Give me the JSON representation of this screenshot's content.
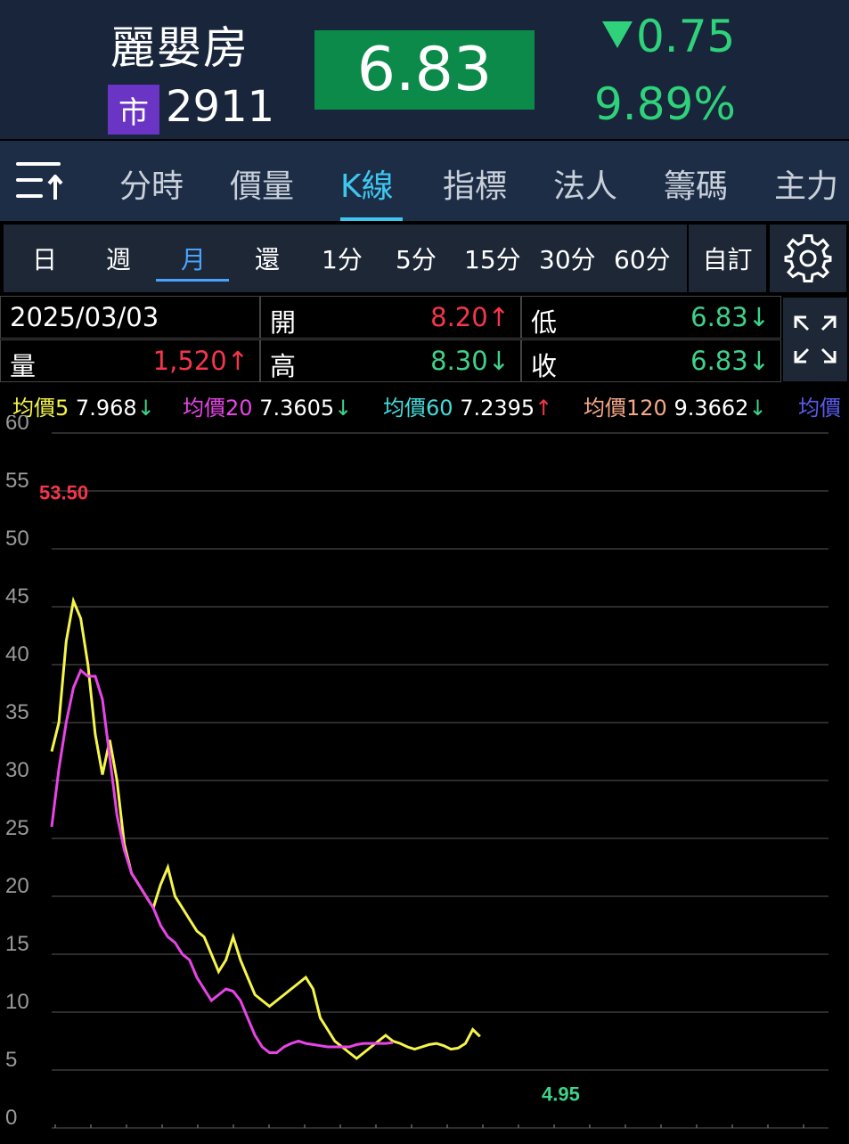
{
  "header": {
    "stock_name": "麗嬰房",
    "market_badge": "市",
    "stock_code": "2911",
    "price": "6.83",
    "change": "0.75",
    "change_percent": "9.89%",
    "change_direction": "down"
  },
  "tabs": [
    {
      "label": "分時",
      "active": false
    },
    {
      "label": "價量",
      "active": false
    },
    {
      "label": "K線",
      "active": true
    },
    {
      "label": "指標",
      "active": false
    },
    {
      "label": "法人",
      "active": false
    },
    {
      "label": "籌碼",
      "active": false
    },
    {
      "label": "主力",
      "active": false
    }
  ],
  "periods": [
    {
      "label": "日",
      "active": false
    },
    {
      "label": "週",
      "active": false
    },
    {
      "label": "月",
      "active": true
    },
    {
      "label": "還",
      "active": false
    },
    {
      "label": "1分",
      "active": false
    },
    {
      "label": "5分",
      "active": false
    },
    {
      "label": "15分",
      "active": false
    },
    {
      "label": "30分",
      "active": false
    },
    {
      "label": "60分",
      "active": false
    }
  ],
  "custom_label": "自訂",
  "info": {
    "date": "2025/03/03",
    "open_label": "開",
    "open": "8.20↑",
    "low_label": "低",
    "low": "6.83↓",
    "volume_label": "量",
    "volume": "1,520↑",
    "high_label": "高",
    "high": "8.30↓",
    "close_label": "收",
    "close": "6.83↓"
  },
  "ma_legend": [
    {
      "label": "均價5",
      "value": "7.968",
      "arrow": "↓",
      "color": "#f5f54a"
    },
    {
      "label": "均價20",
      "value": "7.3605",
      "arrow": "↓",
      "color": "#e844e8"
    },
    {
      "label": "均價60",
      "value": "7.2395",
      "arrow": "↑",
      "color": "#46dada"
    },
    {
      "label": "均價120",
      "value": "9.3662",
      "arrow": "↓",
      "color": "#f5a98a"
    },
    {
      "label": "均價",
      "value": "",
      "arrow": "",
      "color": "#5b5bef"
    }
  ],
  "colors": {
    "up": "#f5364a",
    "down": "#3ed28a",
    "accent": "#3fc6f0",
    "header_bg": "#18253b",
    "price_box": "#0c8a4a"
  },
  "chart_data": {
    "type": "line",
    "ylim": [
      0,
      60
    ],
    "y_ticks": [
      "60",
      "55",
      "50",
      "45",
      "40",
      "35",
      "30",
      "25",
      "20",
      "15",
      "10",
      "5",
      "0"
    ],
    "annotations": [
      {
        "text": "53.50",
        "type": "high",
        "value": 53.5
      },
      {
        "text": "4.95",
        "type": "low",
        "value": 4.95
      }
    ],
    "x": [
      0,
      2,
      4,
      6,
      8,
      10,
      12,
      14,
      16,
      18,
      20,
      22,
      24,
      26,
      28,
      30,
      32,
      34,
      36,
      38,
      40,
      42,
      44,
      46,
      48,
      50,
      52,
      54,
      56,
      58,
      60,
      62,
      64,
      66,
      68,
      70,
      72,
      74,
      76,
      78,
      80,
      82,
      84,
      86,
      88,
      90,
      92,
      94,
      96,
      98,
      100,
      102,
      104,
      106,
      108,
      110,
      112,
      114,
      116,
      118,
      120,
      122,
      124,
      126,
      128,
      130,
      132,
      134,
      136,
      138,
      140,
      142,
      144,
      146,
      148,
      150,
      152,
      154,
      156,
      158,
      160,
      162,
      164,
      166,
      168,
      170,
      172,
      174,
      176,
      178,
      180,
      182,
      184,
      186,
      188,
      190,
      192,
      194,
      196,
      198,
      200,
      202,
      204,
      206,
      208,
      210,
      212,
      214
    ],
    "series": [
      {
        "name": "均價5",
        "color": "#f5f54a",
        "values": [
          32.5,
          35,
          42,
          45.5,
          44,
          40,
          34,
          30.5,
          33.5,
          30,
          24.5,
          22,
          21,
          20,
          19,
          21,
          22.5,
          20,
          19,
          18,
          17,
          16.5,
          15,
          13.5,
          14.5,
          16.5,
          14.5,
          13,
          11.5,
          11,
          10.5,
          11,
          11.5,
          12,
          12.5,
          13,
          12,
          9.5,
          8.5,
          7.5,
          7,
          6.5,
          6,
          6.5,
          7,
          7.5,
          8,
          7.5,
          7.3,
          7,
          6.8,
          7,
          7.2,
          7.3,
          7.1,
          6.8,
          6.9,
          7.3,
          8.5,
          7.9,
          null,
          null,
          null,
          null,
          null,
          null,
          null,
          null,
          null,
          null,
          null,
          null,
          null,
          null,
          null,
          null,
          null,
          null,
          null,
          null,
          null,
          null,
          null,
          null,
          null,
          null,
          null,
          null,
          null,
          null,
          null,
          null,
          null,
          null,
          null,
          null,
          null,
          null,
          null,
          null,
          null,
          null,
          null,
          null,
          null,
          null,
          null,
          null
        ]
      },
      {
        "name": "均價20",
        "color": "#e844e8",
        "values": [
          26,
          31,
          35,
          38,
          39.5,
          39,
          39,
          37,
          32,
          27,
          24,
          22,
          21,
          20,
          19,
          17.5,
          16.5,
          16,
          15,
          14.5,
          13,
          12,
          11,
          11.5,
          12,
          11.8,
          11,
          9.5,
          8,
          7,
          6.5,
          6.5,
          7,
          7.3,
          7.5,
          7.3,
          7.2,
          7.1,
          7,
          7,
          7,
          7,
          7.2,
          7.3,
          7.3,
          7.3,
          7.3,
          7.36,
          null,
          null,
          null,
          null,
          null,
          null,
          null,
          null,
          null,
          null,
          null,
          null,
          null,
          null,
          null,
          null,
          null,
          null,
          null,
          null,
          null,
          null,
          null,
          null,
          null,
          null,
          null,
          null,
          null,
          null,
          null,
          null,
          null,
          null,
          null,
          null,
          null,
          null,
          null,
          null,
          null,
          null,
          null,
          null,
          null,
          null,
          null,
          null,
          null,
          null,
          null,
          null,
          null,
          null,
          null,
          null,
          null,
          null,
          null,
          null
        ]
      }
    ]
  }
}
